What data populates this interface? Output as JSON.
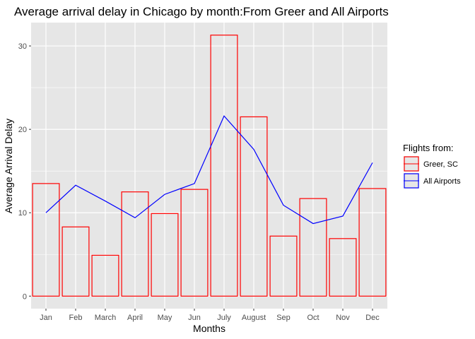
{
  "chart_data": {
    "type": "bar",
    "title": "Average arrival delay in Chicago by month:From Greer and All Airports",
    "xlabel": "Months",
    "ylabel": "Average Arrival Delay",
    "categories": [
      "Jan",
      "Feb",
      "March",
      "April",
      "May",
      "Jun",
      "July",
      "August",
      "Sep",
      "Oct",
      "Nov",
      "Dec"
    ],
    "ylim": [
      -1.5,
      32.8
    ],
    "yticks": [
      0,
      10,
      20,
      30
    ],
    "grid": true,
    "series": [
      {
        "name": "Greer, SC",
        "mark": "bar",
        "color": "#ff0000",
        "values": [
          13.5,
          8.3,
          4.9,
          12.5,
          9.9,
          12.8,
          31.3,
          21.5,
          7.2,
          11.7,
          6.9,
          12.9
        ]
      },
      {
        "name": "All Airports",
        "mark": "line",
        "color": "#0000ff",
        "values": [
          10.0,
          13.3,
          11.4,
          9.4,
          12.2,
          13.5,
          21.6,
          17.6,
          10.9,
          8.7,
          9.6,
          16.0
        ]
      }
    ],
    "legend": {
      "title": "Flights from:",
      "position": "right"
    },
    "panel_background": "#e6e6e6",
    "grid_color": "#ffffff"
  }
}
